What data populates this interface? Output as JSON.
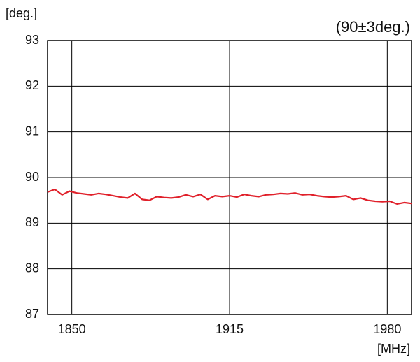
{
  "chart_data": {
    "type": "line",
    "y_label": "[deg.]",
    "x_label": "[MHz]",
    "annotation": "(90±3deg.)",
    "x": [
      1840,
      1843,
      1846,
      1849,
      1852,
      1855,
      1858,
      1861,
      1864,
      1867,
      1870,
      1873,
      1876,
      1879,
      1882,
      1885,
      1888,
      1891,
      1894,
      1897,
      1900,
      1903,
      1906,
      1909,
      1912,
      1915,
      1918,
      1921,
      1924,
      1927,
      1930,
      1933,
      1936,
      1939,
      1942,
      1945,
      1948,
      1951,
      1954,
      1957,
      1960,
      1963,
      1966,
      1969,
      1972,
      1975,
      1978,
      1981,
      1984,
      1987,
      1990
    ],
    "series": [
      {
        "color": "#e0202a",
        "values": [
          89.68,
          89.74,
          89.62,
          89.7,
          89.66,
          89.64,
          89.62,
          89.65,
          89.63,
          89.6,
          89.57,
          89.55,
          89.65,
          89.52,
          89.5,
          89.58,
          89.56,
          89.55,
          89.57,
          89.62,
          89.58,
          89.63,
          89.52,
          89.6,
          89.58,
          89.6,
          89.57,
          89.63,
          89.6,
          89.58,
          89.62,
          89.63,
          89.65,
          89.64,
          89.66,
          89.62,
          89.63,
          89.6,
          89.58,
          89.57,
          89.58,
          89.6,
          89.52,
          89.55,
          89.5,
          89.48,
          89.47,
          89.48,
          89.42,
          89.45,
          89.43
        ]
      }
    ],
    "xlim": [
      1840,
      1990
    ],
    "xticks": [
      1850,
      1915,
      1980
    ],
    "ylim": [
      87,
      93
    ],
    "yticks": [
      87,
      88,
      89,
      90,
      91,
      92,
      93
    ],
    "grid": true
  }
}
